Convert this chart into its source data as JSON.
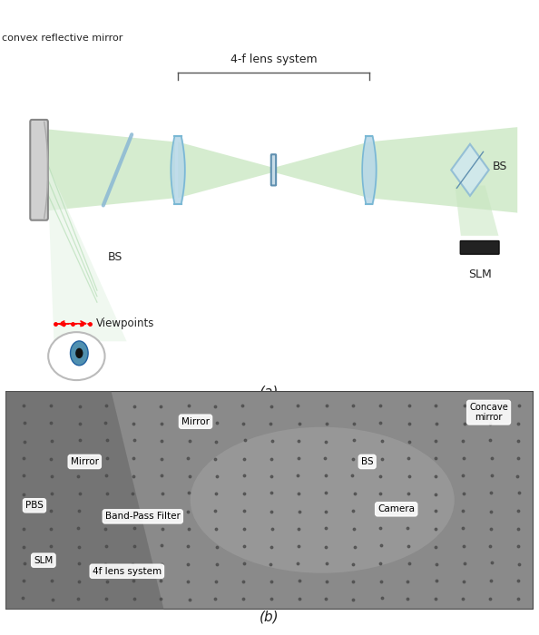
{
  "fig_width": 5.94,
  "fig_height": 7.0,
  "dpi": 100,
  "panel_a_label": "(a)",
  "panel_b_label": "(b)",
  "background_color": "#ffffff",
  "schematic": {
    "title_4f": "4-f lens system",
    "label_convex": "convex reflective mirror",
    "label_BS_left": "BS",
    "label_BS_right": "BS",
    "label_SLM": "SLM",
    "label_viewpoints": "Viewpoints",
    "beam_color": "#c8e6c0",
    "beam_color_fan": "#e8f5e9",
    "lens_color": "#b8d8e8",
    "lens_edge_color": "#7ab8d4",
    "mirror_color": "#d0d0d0",
    "mirror_edge_color": "#888888",
    "bs_line_color": "#8ab8d4",
    "bs2_face_color": "#d0e8f0",
    "bs2_edge_color": "#8ab8d4",
    "plate_face_color": "#c8dce8",
    "plate_edge_color": "#6090b0",
    "slm_face_color": "#222222",
    "eye_iris_color": "#5090b0",
    "eye_iris_edge": "#2060a0",
    "viewpoint_color": "red",
    "ray_color": "#a8d8a8",
    "text_color": "#222222",
    "bracket_color": "#555555"
  },
  "photo_labels": {
    "mirror_top": "Mirror",
    "mirror_left": "Mirror",
    "pbs": "PBS",
    "slm": "SLM",
    "band_pass": "Band-Pass Filter",
    "4f_lens": "4f lens system",
    "bs": "BS",
    "camera": "Camera",
    "concave": "Concave\nmirror"
  }
}
